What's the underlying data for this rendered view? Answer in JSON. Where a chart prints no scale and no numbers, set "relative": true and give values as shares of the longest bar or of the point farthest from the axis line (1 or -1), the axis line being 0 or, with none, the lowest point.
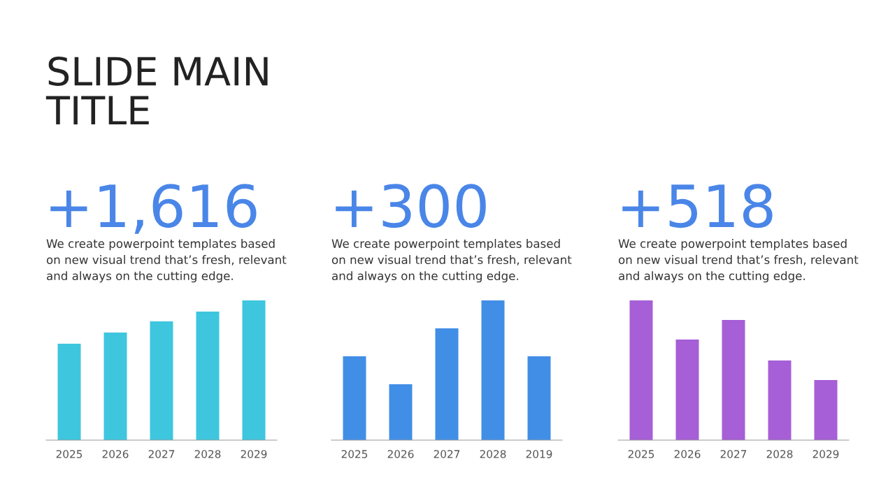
{
  "chart_data": [
    {
      "type": "bar",
      "title": "+1,616",
      "subtitle": "We create powerpoint templates based\non new visual trend that’s fresh, relevant\nand always on the cutting edge.",
      "annotations": [
        "SLIDE MAIN\nTITLE"
      ],
      "categories": [
        "2025",
        "2026",
        "2027",
        "2028",
        "2029"
      ],
      "values": [
        0.69,
        0.77,
        0.85,
        0.92,
        1
      ],
      "color": "#3ec6de",
      "relative": true
    },
    {
      "type": "bar",
      "title": "+300",
      "subtitle": "We create powerpoint templates based\non new visual trend that’s fresh, relevant\nand always on the cutting edge.",
      "categories": [
        "2025",
        "2026",
        "2027",
        "2028",
        "2019"
      ],
      "values": [
        0.6,
        0.4,
        0.8,
        1,
        0.6
      ],
      "color": "#418ee6",
      "relative": true
    },
    {
      "type": "bar",
      "title": "+518",
      "subtitle": "We create powerpoint templates based\non new visual trend that’s fresh, relevant\nand always on the cutting edge.",
      "categories": [
        "2025",
        "2026",
        "2027",
        "2028",
        "2029"
      ],
      "values": [
        1,
        0.72,
        0.86,
        0.57,
        0.43
      ],
      "color": "#a65fd6",
      "relative": true
    }
  ]
}
